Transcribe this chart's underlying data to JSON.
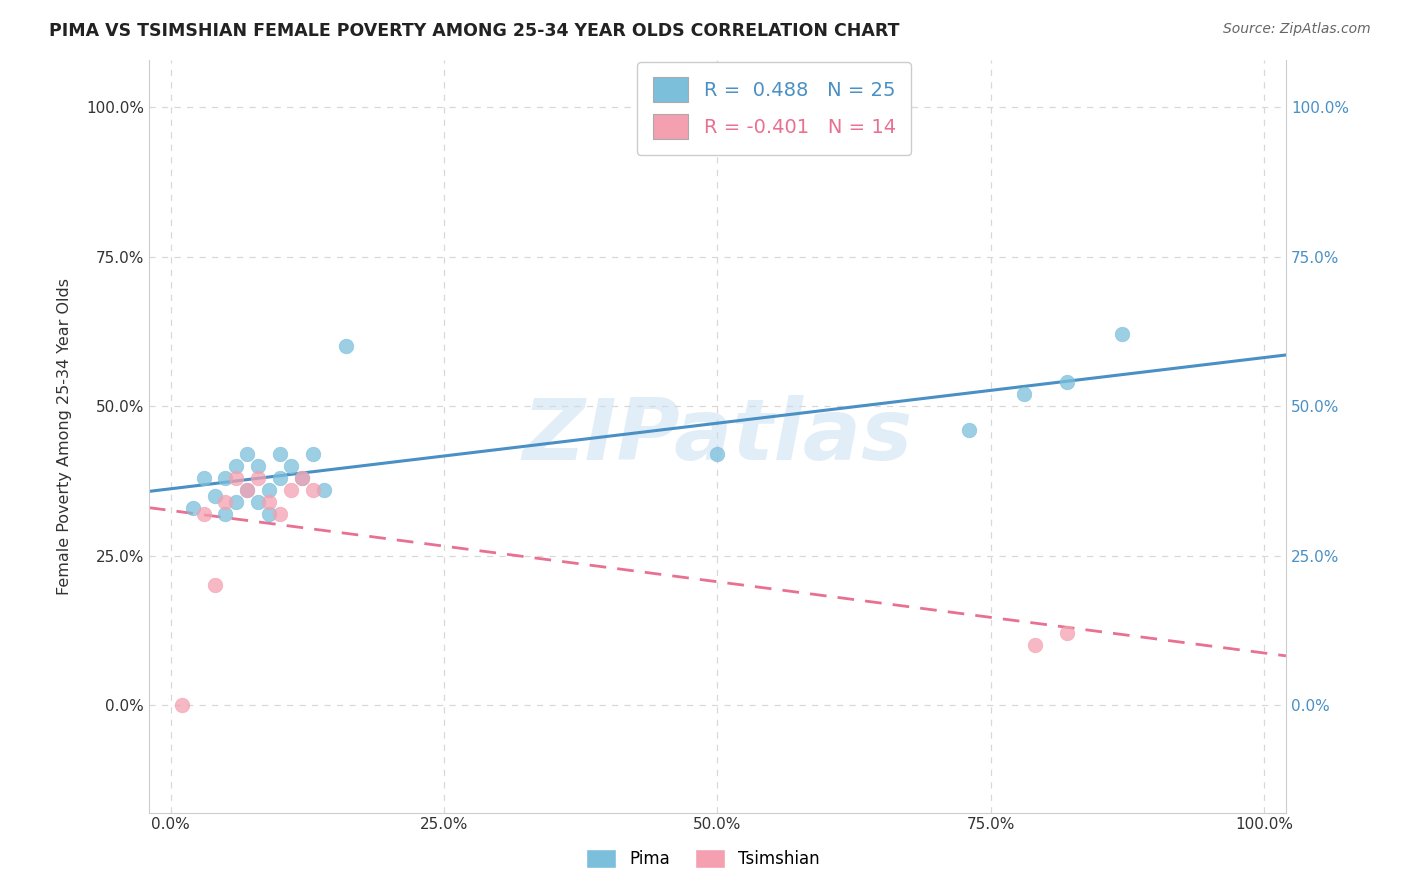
{
  "title": "PIMA VS TSIMSHIAN FEMALE POVERTY AMONG 25-34 YEAR OLDS CORRELATION CHART",
  "source": "Source: ZipAtlas.com",
  "ylabel": "Female Poverty Among 25-34 Year Olds",
  "xlim": [
    -0.02,
    1.02
  ],
  "ylim": [
    -0.18,
    1.08
  ],
  "x_ticks": [
    0.0,
    0.25,
    0.5,
    0.75,
    1.0
  ],
  "y_ticks": [
    0.0,
    0.25,
    0.5,
    0.75,
    1.0
  ],
  "x_tick_labels": [
    "0.0%",
    "25.0%",
    "50.0%",
    "75.0%",
    "100.0%"
  ],
  "y_tick_labels": [
    "0.0%",
    "25.0%",
    "50.0%",
    "75.0%",
    "100.0%"
  ],
  "right_y_tick_labels": [
    "0.0%",
    "25.0%",
    "50.0%",
    "75.0%",
    "100.0%"
  ],
  "pima_color": "#7bbfdb",
  "tsimshian_color": "#f4a0b0",
  "pima_line_color": "#4a90c4",
  "tsimshian_line_color": "#e87090",
  "watermark": "ZIPatlas",
  "pima_R": 0.488,
  "pima_N": 25,
  "tsimshian_R": -0.401,
  "tsimshian_N": 14,
  "pima_points_x": [
    0.02,
    0.03,
    0.04,
    0.05,
    0.05,
    0.06,
    0.06,
    0.07,
    0.07,
    0.08,
    0.08,
    0.09,
    0.09,
    0.1,
    0.1,
    0.11,
    0.12,
    0.13,
    0.16,
    0.5,
    0.73,
    0.78,
    0.82,
    0.87,
    0.14
  ],
  "pima_points_y": [
    0.33,
    0.38,
    0.35,
    0.32,
    0.38,
    0.34,
    0.4,
    0.36,
    0.42,
    0.34,
    0.4,
    0.32,
    0.36,
    0.38,
    0.42,
    0.4,
    0.38,
    0.42,
    0.6,
    0.42,
    0.46,
    0.52,
    0.54,
    0.62,
    0.36
  ],
  "tsimshian_points_x": [
    0.01,
    0.03,
    0.04,
    0.05,
    0.06,
    0.07,
    0.08,
    0.09,
    0.1,
    0.11,
    0.12,
    0.13,
    0.79,
    0.82
  ],
  "tsimshian_points_y": [
    0.0,
    0.32,
    0.2,
    0.34,
    0.38,
    0.36,
    0.38,
    0.34,
    0.32,
    0.36,
    0.38,
    0.36,
    0.1,
    0.12
  ],
  "background_color": "#ffffff",
  "grid_color": "#d8d8d8",
  "grid_style": "--"
}
